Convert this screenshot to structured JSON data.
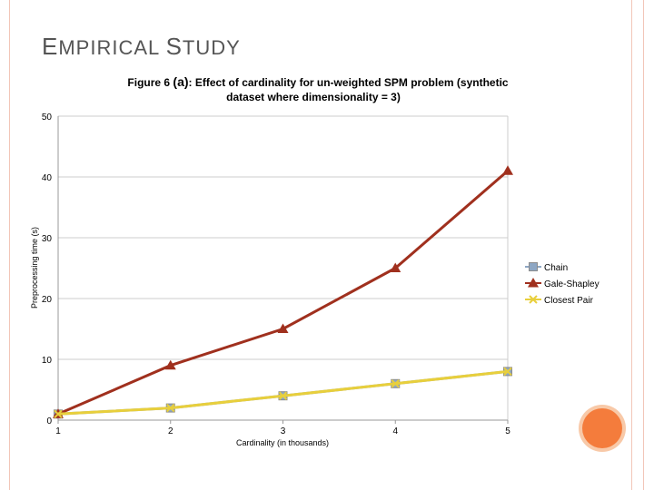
{
  "slide": {
    "title_first_letter_1": "E",
    "title_rest_1": "MPIRICAL ",
    "title_first_letter_2": "S",
    "title_rest_2": "TUDY"
  },
  "chart_data": {
    "type": "line",
    "title_prefix": "Figure 6 ",
    "title_mark": "(a)",
    "title_line1_rest": ": Effect of cardinality for un-weighted SPM problem (synthetic",
    "title_line2": "dataset where dimensionality = 3)",
    "xlabel": "Cardinality (in thousands)",
    "ylabel": "Preprocessing time (s)",
    "x": [
      1,
      2,
      3,
      4,
      5
    ],
    "x_tick_labels": [
      "1",
      "2",
      "3",
      "4",
      "5"
    ],
    "ylim": [
      0,
      50
    ],
    "y_ticks": [
      0,
      10,
      20,
      30,
      40,
      50
    ],
    "grid": true,
    "legend_position": "right",
    "series": [
      {
        "name": "Chain",
        "values": [
          1,
          2,
          4,
          6,
          8
        ],
        "color": "#8ea7c4",
        "marker": "square"
      },
      {
        "name": "Gale-Shapley",
        "values": [
          1,
          9,
          15,
          25,
          41
        ],
        "color": "#a0301e",
        "marker": "triangle"
      },
      {
        "name": "Closest Pair",
        "values": [
          1,
          2,
          4,
          6,
          8
        ],
        "color": "#e8cf3c",
        "marker": "x"
      }
    ]
  },
  "colors": {
    "accent": "#f47c3c",
    "frame": "#f2c6b8",
    "title_text": "#555555"
  }
}
